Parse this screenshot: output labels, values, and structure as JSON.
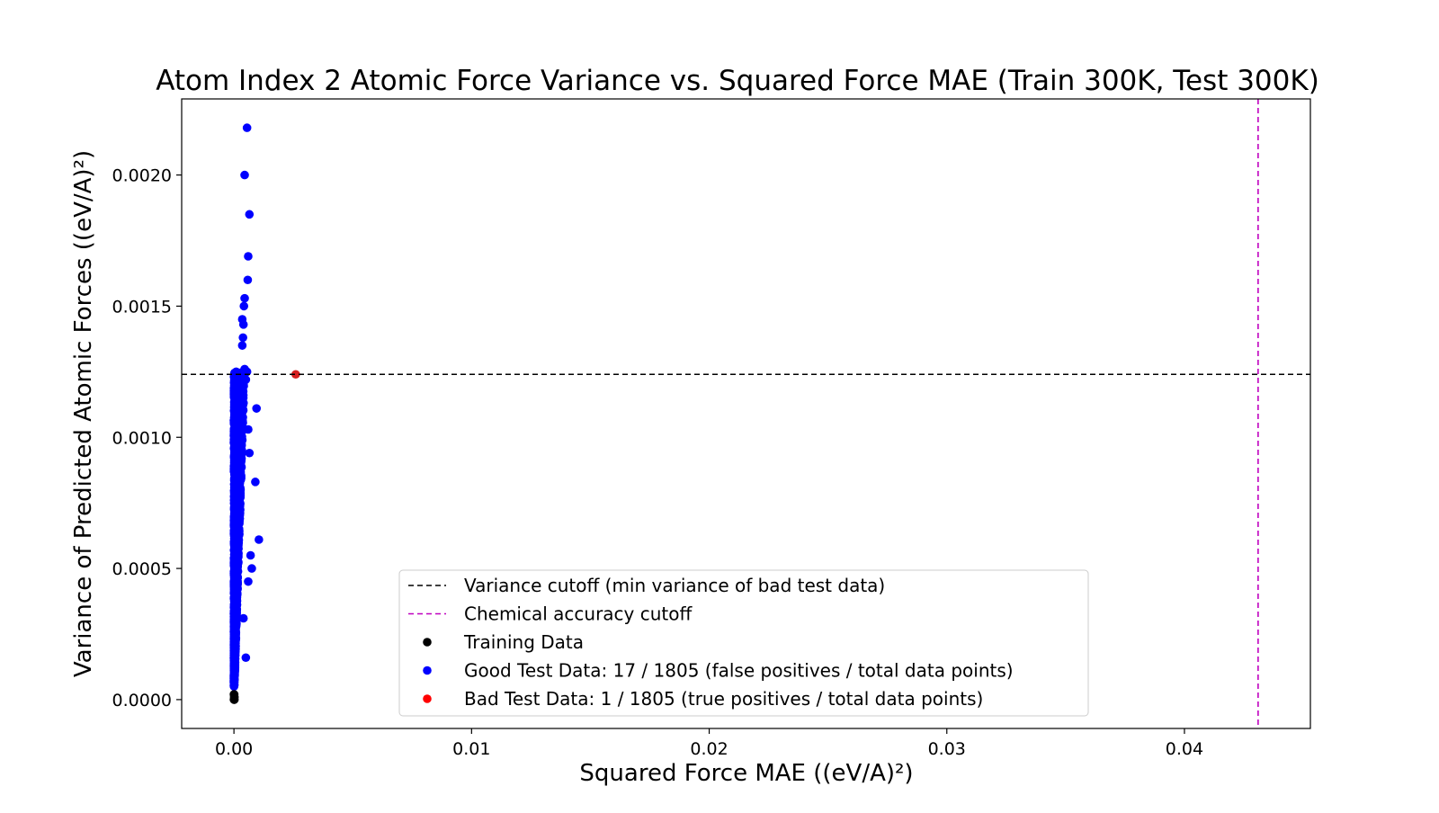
{
  "chart_data": {
    "type": "scatter",
    "title": "Atom Index 2 Atomic Force Variance vs. Squared Force MAE (Train 300K, Test 300K)",
    "xlabel": "Squared Force MAE ((eV/A)²)",
    "ylabel": "Variance of Predicted Atomic Forces ((eV/A)²)",
    "xlim": [
      -0.0022,
      0.0453
    ],
    "ylim": [
      -0.00011,
      0.00229
    ],
    "x_ticks": [
      0.0,
      0.01,
      0.02,
      0.03,
      0.04
    ],
    "x_tick_labels": [
      "0.00",
      "0.01",
      "0.02",
      "0.03",
      "0.04"
    ],
    "y_ticks": [
      0.0,
      0.0005,
      0.001,
      0.0015,
      0.002
    ],
    "y_tick_labels": [
      "0.0000",
      "0.0005",
      "0.0010",
      "0.0015",
      "0.0020"
    ],
    "grid": false,
    "legend_position": "lower center",
    "reference_lines": [
      {
        "orientation": "horizontal",
        "value": 0.00124,
        "style": "dashed",
        "color": "#000000",
        "label": "Variance cutoff (min variance of bad test data)"
      },
      {
        "orientation": "vertical",
        "value": 0.0431,
        "style": "dashed",
        "color": "#bf00bf",
        "label": "Chemical accuracy cutoff"
      }
    ],
    "series": [
      {
        "name": "Training Data",
        "color": "#000000",
        "points": [
          [
            0.0,
            2e-05
          ],
          [
            1e-05,
            1e-05
          ],
          [
            2e-05,
            0.0
          ],
          [
            0.0,
            0.0
          ],
          [
            1e-05,
            2e-05
          ],
          [
            2e-05,
            1e-05
          ]
        ]
      },
      {
        "name": "Good Test Data: 17 / 1805 (false positives / total data points)",
        "color": "#0000ff",
        "points": [
          [
            0.00055,
            0.00218
          ],
          [
            0.00045,
            0.002
          ],
          [
            0.00065,
            0.00185
          ],
          [
            0.0006,
            0.00169
          ],
          [
            0.00058,
            0.0016
          ],
          [
            0.00045,
            0.00153
          ],
          [
            0.00042,
            0.0015
          ],
          [
            0.00035,
            0.00145
          ],
          [
            0.0004,
            0.00143
          ],
          [
            0.00038,
            0.00138
          ],
          [
            0.00035,
            0.00135
          ],
          [
            0.00045,
            0.00126
          ],
          [
            0.00055,
            0.00125
          ],
          [
            0.0005,
            0.00122
          ],
          [
            0.00095,
            0.00111
          ],
          [
            0.0009,
            0.00083
          ],
          [
            0.00105,
            0.00061
          ],
          [
            0.00075,
            0.0005
          ],
          [
            0.0007,
            0.00055
          ],
          [
            0.0006,
            0.00045
          ],
          [
            0.00065,
            0.00094
          ],
          [
            0.0006,
            0.00103
          ],
          [
            0.0005,
            0.00016
          ],
          [
            0.0004,
            0.00031
          ]
        ],
        "cloud": {
          "x_range": [
            0.0,
            0.0008
          ],
          "y_range": [
            5e-05,
            0.00125
          ],
          "count": 1780
        }
      },
      {
        "name": "Bad Test Data: 1 / 1805 (true positives / total data points)",
        "color": "#ff0000",
        "points": [
          [
            0.0026,
            0.00124
          ]
        ]
      }
    ],
    "legend": [
      {
        "kind": "line",
        "style": "dashed",
        "color": "#000000",
        "label": "Variance cutoff (min variance of bad test data)"
      },
      {
        "kind": "line",
        "style": "dashed",
        "color": "#bf00bf",
        "label": "Chemical accuracy cutoff"
      },
      {
        "kind": "marker",
        "color": "#000000",
        "label": "Training Data"
      },
      {
        "kind": "marker",
        "color": "#0000ff",
        "label": "Good Test Data: 17 / 1805 (false positives / total data points)"
      },
      {
        "kind": "marker",
        "color": "#ff0000",
        "label": "Bad Test Data: 1 / 1805 (true positives / total data points)"
      }
    ]
  }
}
